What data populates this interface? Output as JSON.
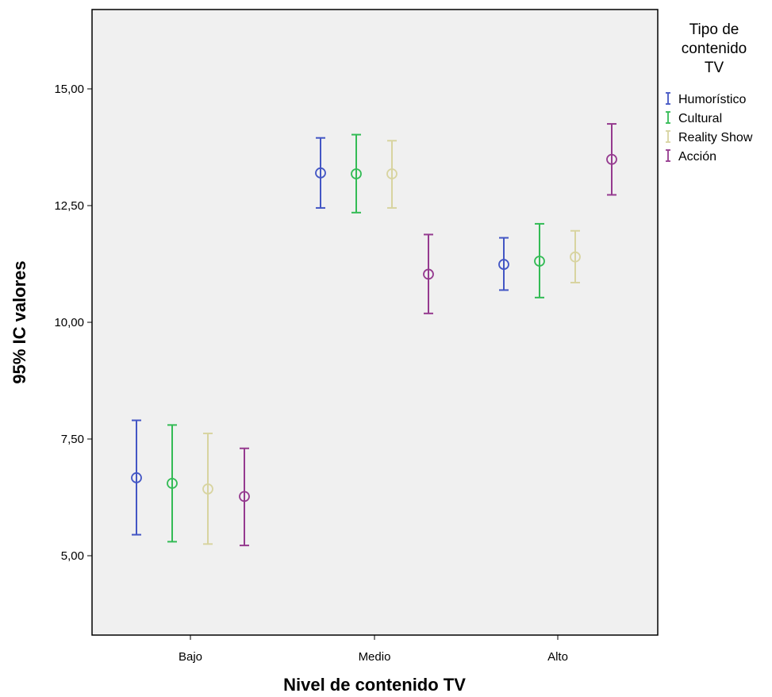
{
  "chart_data": {
    "type": "error-bar",
    "xlabel": "Nivel de contenido TV",
    "ylabel": "95% IC valores",
    "categories": [
      "Bajo",
      "Medio",
      "Alto"
    ],
    "ylim": [
      3.3,
      16.7
    ],
    "yticks": [
      5,
      7.5,
      10,
      12.5,
      15
    ],
    "ytick_labels": [
      "5,00",
      "7,50",
      "10,00",
      "12,50",
      "15,00"
    ],
    "grid": false,
    "legend": {
      "title_lines": [
        "Tipo de",
        "contenido",
        "TV"
      ],
      "position": "right"
    },
    "series": [
      {
        "name": "Humorístico",
        "color": "#4356c4",
        "means": [
          6.67,
          13.2,
          11.24
        ],
        "lower": [
          5.45,
          12.45,
          10.69
        ],
        "upper": [
          7.9,
          13.95,
          11.81
        ]
      },
      {
        "name": "Cultural",
        "color": "#33bb55",
        "means": [
          6.55,
          13.18,
          11.31
        ],
        "lower": [
          5.3,
          12.35,
          10.53
        ],
        "upper": [
          7.8,
          14.02,
          12.11
        ]
      },
      {
        "name": "Reality Show",
        "color": "#d8d4a0",
        "means": [
          6.43,
          13.18,
          11.4
        ],
        "lower": [
          5.25,
          12.45,
          10.85
        ],
        "upper": [
          7.62,
          13.89,
          11.96
        ]
      },
      {
        "name": "Acción",
        "color": "#953a8f",
        "means": [
          6.27,
          11.03,
          13.49
        ],
        "lower": [
          5.22,
          10.19,
          12.73
        ],
        "upper": [
          7.3,
          11.88,
          14.25
        ]
      }
    ]
  }
}
